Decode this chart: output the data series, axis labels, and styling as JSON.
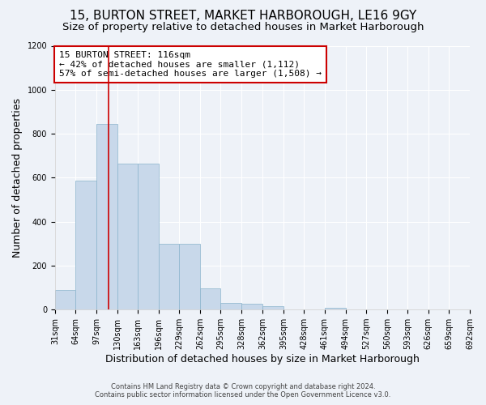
{
  "title": "15, BURTON STREET, MARKET HARBOROUGH, LE16 9GY",
  "subtitle": "Size of property relative to detached houses in Market Harborough",
  "xlabel": "Distribution of detached houses by size in Market Harborough",
  "ylabel": "Number of detached properties",
  "footnote1": "Contains HM Land Registry data © Crown copyright and database right 2024.",
  "footnote2": "Contains public sector information licensed under the Open Government Licence v3.0.",
  "bins_left": [
    31,
    64,
    97,
    130,
    163,
    196,
    229,
    262,
    295,
    328,
    362,
    395,
    428,
    461,
    494,
    527,
    560,
    593,
    626,
    659
  ],
  "bin_width": 33,
  "bar_heights": [
    90,
    585,
    845,
    665,
    665,
    300,
    300,
    95,
    30,
    25,
    15,
    0,
    0,
    10,
    0,
    0,
    0,
    0,
    0,
    0
  ],
  "bar_color": "#c8d8ea",
  "bar_edge_color": "#8ab4cc",
  "bar_linewidth": 0.5,
  "vline_x": 116,
  "vline_color": "#cc0000",
  "vline_linewidth": 1.2,
  "annotation_text": "15 BURTON STREET: 116sqm\n← 42% of detached houses are smaller (1,112)\n57% of semi-detached houses are larger (1,508) →",
  "annotation_box_color": "#ffffff",
  "annotation_box_edgecolor": "#cc0000",
  "annotation_fontsize": 8.0,
  "xlim_left": 31,
  "xlim_right": 692,
  "ylim": [
    0,
    1200
  ],
  "yticks": [
    0,
    200,
    400,
    600,
    800,
    1000,
    1200
  ],
  "xtick_labels": [
    "31sqm",
    "64sqm",
    "97sqm",
    "130sqm",
    "163sqm",
    "196sqm",
    "229sqm",
    "262sqm",
    "295sqm",
    "328sqm",
    "362sqm",
    "395sqm",
    "428sqm",
    "461sqm",
    "494sqm",
    "527sqm",
    "560sqm",
    "593sqm",
    "626sqm",
    "659sqm",
    "692sqm"
  ],
  "xtick_positions": [
    31,
    64,
    97,
    130,
    163,
    196,
    229,
    262,
    295,
    328,
    362,
    395,
    428,
    461,
    494,
    527,
    560,
    593,
    626,
    659,
    692
  ],
  "background_color": "#eef2f8",
  "plot_background": "#eef2f8",
  "grid_color": "#ffffff",
  "title_fontsize": 11,
  "subtitle_fontsize": 9.5,
  "tick_fontsize": 7,
  "ylabel_fontsize": 9,
  "xlabel_fontsize": 9,
  "footnote_fontsize": 6.0
}
